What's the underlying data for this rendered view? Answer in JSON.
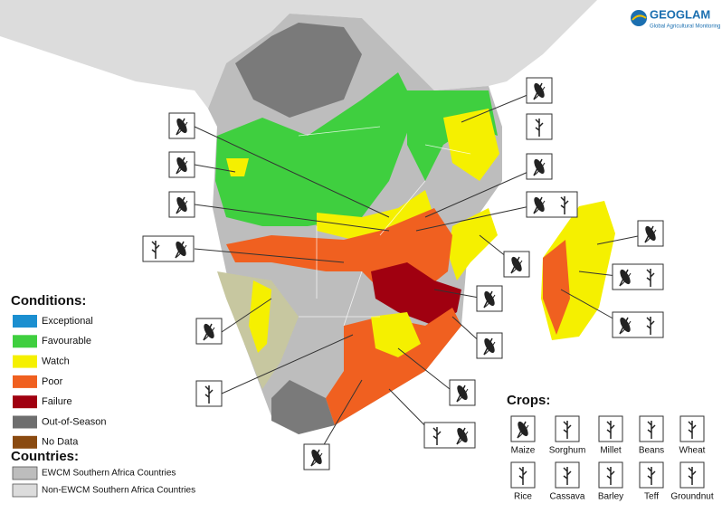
{
  "logo": {
    "title": "GEOGLAM",
    "subtitle": "Global Agricultural Monitoring"
  },
  "legend": {
    "conditions_title": "Conditions:",
    "conditions": [
      {
        "label": "Exceptional",
        "color": "#1b8fd0"
      },
      {
        "label": "Favourable",
        "color": "#3fcf3f"
      },
      {
        "label": "Watch",
        "color": "#f5f000"
      },
      {
        "label": "Poor",
        "color": "#f06020"
      },
      {
        "label": "Failure",
        "color": "#a00010"
      },
      {
        "label": "Out-of-Season",
        "color": "#6e6e6e"
      },
      {
        "label": "No Data",
        "color": "#8a4a10"
      }
    ],
    "countries_title": "Countries:",
    "countries": [
      {
        "label": "EWCM Southern Africa Countries",
        "color": "#bdbdbd"
      },
      {
        "label": "Non-EWCM Southern Africa Countries",
        "color": "#dcdcdc"
      }
    ]
  },
  "crops": {
    "title": "Crops:",
    "items": [
      "Maize",
      "Sorghum",
      "Millet",
      "Beans",
      "Wheat",
      "Rice",
      "Cassava",
      "Barley",
      "Teff",
      "Groundnut"
    ]
  }
}
